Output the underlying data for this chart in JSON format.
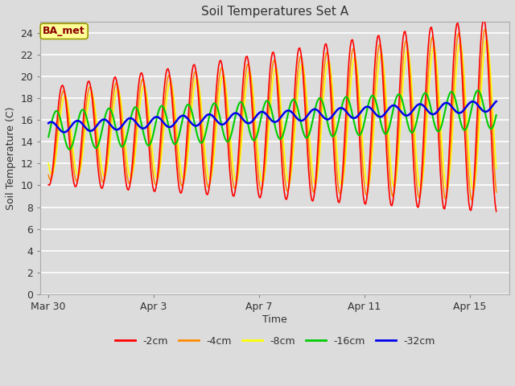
{
  "title": "Soil Temperatures Set A",
  "xlabel": "Time",
  "ylabel": "Soil Temperature (C)",
  "annotation": "BA_met",
  "annotation_color": "#8B0000",
  "annotation_bg": "#FFFF99",
  "annotation_edge": "#999900",
  "bg_color": "#DCDCDC",
  "plot_bg_color": "#DCDCDC",
  "ylim": [
    0,
    25
  ],
  "yticks": [
    0,
    2,
    4,
    6,
    8,
    10,
    12,
    14,
    16,
    18,
    20,
    22,
    24
  ],
  "xtick_labels": [
    "Mar 30",
    "Apr 3",
    "Apr 7",
    "Apr 11",
    "Apr 15"
  ],
  "xtick_positions": [
    0,
    4,
    8,
    12,
    16
  ],
  "xlim": [
    0,
    17.5
  ],
  "colors": {
    "-2cm": "#FF0000",
    "-4cm": "#FF8C00",
    "-8cm": "#FFFF00",
    "-16cm": "#00CC00",
    "-32cm": "#0000EE"
  },
  "line_widths": {
    "-2cm": 1.2,
    "-4cm": 1.2,
    "-8cm": 1.2,
    "-16cm": 1.5,
    "-32cm": 1.8
  },
  "legend_labels": [
    "-2cm",
    "-4cm",
    "-8cm",
    "-16cm",
    "-32cm"
  ]
}
